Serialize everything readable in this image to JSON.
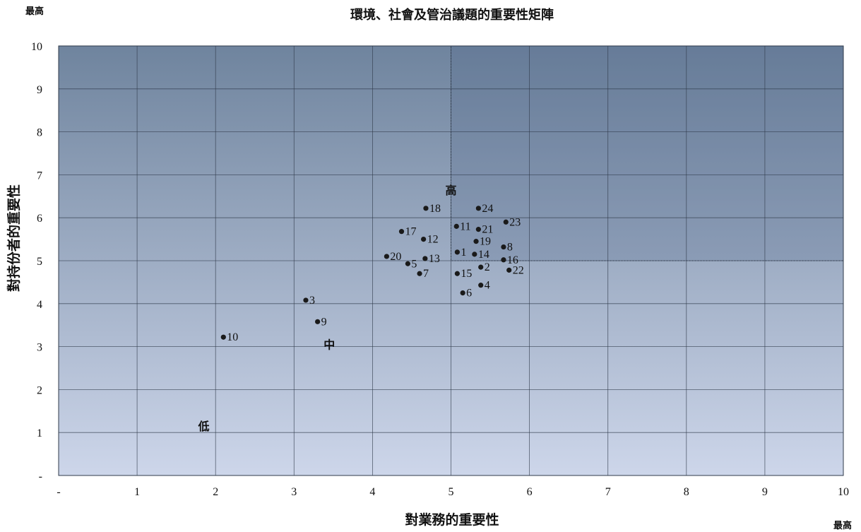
{
  "chart_data": {
    "type": "scatter",
    "title": "環境、社會及管治議題的重要性矩陣",
    "xlabel": "對業務的重要性",
    "ylabel": "對持份者的重要性",
    "corner_label_y": "最高",
    "corner_label_x": "最高",
    "xlim": [
      0,
      10
    ],
    "ylim": [
      0,
      10
    ],
    "x_tick_labels": [
      "-",
      "1",
      "2",
      "3",
      "4",
      "5",
      "6",
      "7",
      "8",
      "9",
      "10"
    ],
    "y_tick_labels": [
      "-",
      "1",
      "2",
      "3",
      "4",
      "5",
      "6",
      "7",
      "8",
      "9",
      "10"
    ],
    "grid": true,
    "highlight_region": {
      "x": [
        5,
        10
      ],
      "y": [
        5,
        10
      ]
    },
    "zone_labels": [
      {
        "text": "高",
        "x": 5.0,
        "y": 6.55
      },
      {
        "text": "中",
        "x": 3.45,
        "y": 2.95
      },
      {
        "text": "低",
        "x": 1.85,
        "y": 1.05
      }
    ],
    "colors": {
      "plot_top": "#6f849e",
      "plot_bottom": "#cdd6ea",
      "highlight_fill": "#4a5f85",
      "grid": "#2f3a4a",
      "point": "#1a1a1a"
    },
    "points": [
      {
        "label": "1",
        "x": 5.08,
        "y": 5.2
      },
      {
        "label": "2",
        "x": 5.38,
        "y": 4.85
      },
      {
        "label": "3",
        "x": 3.15,
        "y": 4.08
      },
      {
        "label": "4",
        "x": 5.38,
        "y": 4.43
      },
      {
        "label": "5",
        "x": 4.45,
        "y": 4.93
      },
      {
        "label": "6",
        "x": 5.15,
        "y": 4.25
      },
      {
        "label": "7",
        "x": 4.6,
        "y": 4.7
      },
      {
        "label": "8",
        "x": 5.67,
        "y": 5.32
      },
      {
        "label": "9",
        "x": 3.3,
        "y": 3.58
      },
      {
        "label": "10",
        "x": 2.1,
        "y": 3.22
      },
      {
        "label": "11",
        "x": 5.07,
        "y": 5.8
      },
      {
        "label": "12",
        "x": 4.65,
        "y": 5.5
      },
      {
        "label": "13",
        "x": 4.67,
        "y": 5.05
      },
      {
        "label": "14",
        "x": 5.3,
        "y": 5.15
      },
      {
        "label": "15",
        "x": 5.08,
        "y": 4.7
      },
      {
        "label": "16",
        "x": 5.67,
        "y": 5.02
      },
      {
        "label": "17",
        "x": 4.37,
        "y": 5.68
      },
      {
        "label": "18",
        "x": 4.68,
        "y": 6.22
      },
      {
        "label": "19",
        "x": 5.32,
        "y": 5.45
      },
      {
        "label": "20",
        "x": 4.18,
        "y": 5.1
      },
      {
        "label": "21",
        "x": 5.35,
        "y": 5.73
      },
      {
        "label": "22",
        "x": 5.74,
        "y": 4.78
      },
      {
        "label": "23",
        "x": 5.7,
        "y": 5.9
      },
      {
        "label": "24",
        "x": 5.35,
        "y": 6.22
      }
    ]
  }
}
